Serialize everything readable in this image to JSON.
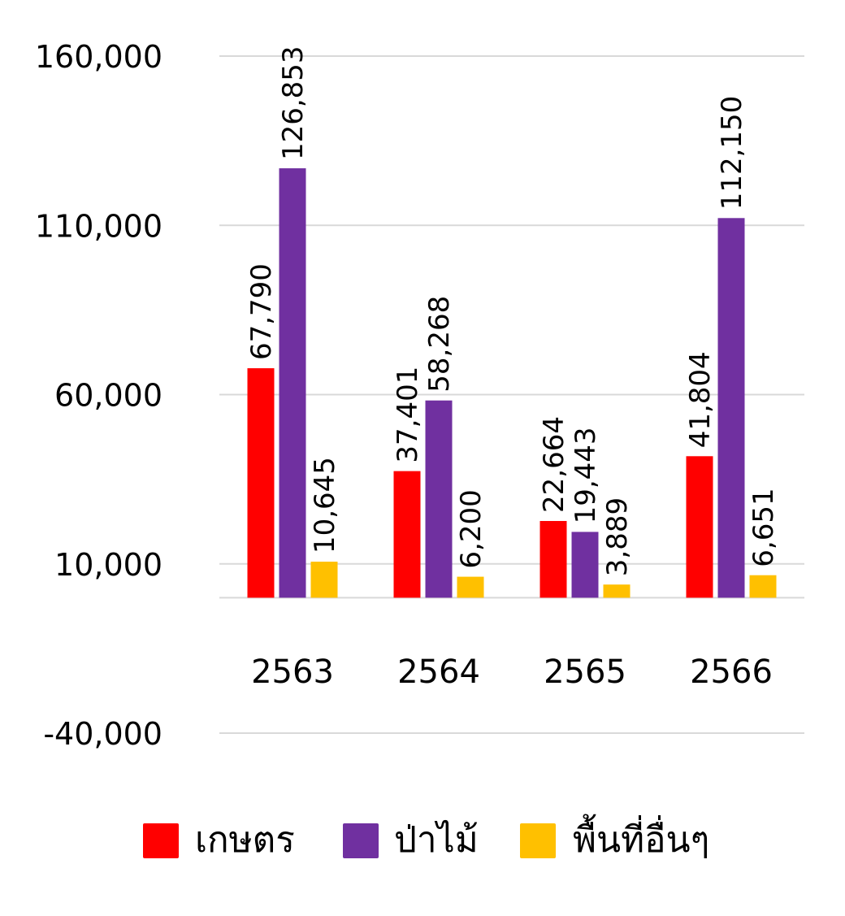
{
  "chart_data": {
    "type": "bar",
    "title": "",
    "xlabel": "",
    "ylabel": "",
    "categories": [
      "2563",
      "2564",
      "2565",
      "2566"
    ],
    "series": [
      {
        "name": "เกษตร",
        "color": "#FF0000",
        "values": [
          67790,
          37401,
          22664,
          41804
        ],
        "labels": [
          "67,790",
          "37,401",
          "22,664",
          "41,804"
        ]
      },
      {
        "name": "ป่าไม้",
        "color": "#7030A0",
        "values": [
          126853,
          58268,
          19443,
          112150
        ],
        "labels": [
          "126,853",
          "58,268",
          "19,443",
          "112,150"
        ]
      },
      {
        "name": "พื้นที่อื่นๆ",
        "color": "#FFC000",
        "values": [
          10645,
          6200,
          3889,
          6651
        ],
        "labels": [
          "10,645",
          "6,200",
          "3,889",
          "6,651"
        ]
      }
    ],
    "ylim": [
      -40000,
      160000
    ],
    "yticks": [
      -40000,
      10000,
      60000,
      110000,
      160000
    ],
    "ytick_labels": [
      "-40,000",
      "10,000",
      "60,000",
      "110,000",
      "160,000"
    ],
    "grid": true,
    "legend_position": "bottom",
    "data_label_orientation": "vertical"
  }
}
